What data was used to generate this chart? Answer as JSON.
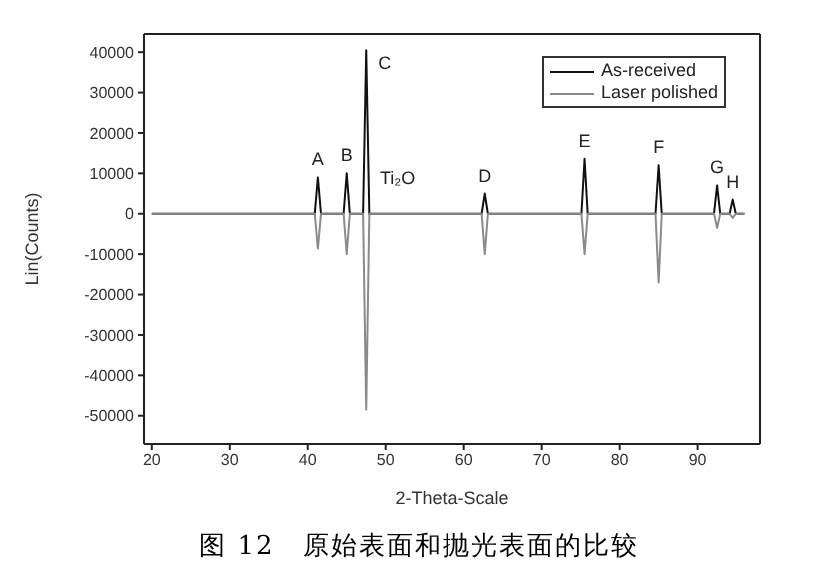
{
  "chart_data": {
    "type": "line",
    "xlabel": "2-Theta-Scale",
    "ylabel": "Lin(Counts)",
    "xlim": [
      19,
      98
    ],
    "xticks": [
      20,
      30,
      40,
      50,
      60,
      70,
      80,
      90
    ],
    "ylim": [
      -57000,
      44500
    ],
    "yticks": [
      -50000,
      -40000,
      -30000,
      -20000,
      -10000,
      0,
      10000,
      20000,
      30000,
      40000
    ],
    "grid": false,
    "legend": "top right",
    "marker": "none",
    "line_style": "solid",
    "series": [
      {
        "name": "As-received",
        "color": "#111111",
        "x": [
          20,
          40.9,
          41.3,
          41.7,
          44.6,
          45,
          45.4,
          47.1,
          47.5,
          47.9,
          62.3,
          62.7,
          63.1,
          75.1,
          75.5,
          75.9,
          84.6,
          85,
          85.4,
          92.1,
          92.5,
          92.9,
          94.1,
          94.5,
          94.9,
          96
        ],
        "values": [
          0,
          0,
          9000,
          0,
          0,
          10000,
          0,
          0,
          40500,
          0,
          0,
          5000,
          0,
          0,
          13600,
          0,
          0,
          12000,
          0,
          0,
          7000,
          0,
          0,
          3500,
          0,
          0
        ]
      },
      {
        "name": "Laser polished",
        "color": "#8a8a8a",
        "x": [
          20,
          40.9,
          41.3,
          41.7,
          44.6,
          45,
          45.4,
          47.1,
          47.5,
          47.9,
          62.3,
          62.7,
          63.1,
          75.1,
          75.5,
          75.9,
          84.6,
          85,
          85.4,
          92.1,
          92.5,
          92.9,
          94.1,
          94.5,
          94.9,
          96
        ],
        "values": [
          0,
          0,
          -8600,
          0,
          0,
          -10000,
          0,
          0,
          -48500,
          0,
          0,
          -10000,
          0,
          0,
          -10000,
          0,
          0,
          -17000,
          0,
          0,
          -3500,
          0,
          0,
          -1000,
          0,
          0
        ]
      }
    ],
    "annotations": [
      {
        "text": "A",
        "x": 41.3,
        "y": 9000
      },
      {
        "text": "B",
        "x": 45,
        "y": 10000
      },
      {
        "text": "C",
        "x": 47.5,
        "y": 40500
      },
      {
        "text": "Ti₂O",
        "x": 47.2,
        "y": 2000
      },
      {
        "text": "D",
        "x": 62.7,
        "y": 5000
      },
      {
        "text": "E",
        "x": 75.5,
        "y": 13600
      },
      {
        "text": "F",
        "x": 85,
        "y": 12000
      },
      {
        "text": "G",
        "x": 92.5,
        "y": 7000
      },
      {
        "text": "H",
        "x": 94.5,
        "y": 3500
      },
      "图 12　原始表面和抛光表面的比较"
    ]
  }
}
